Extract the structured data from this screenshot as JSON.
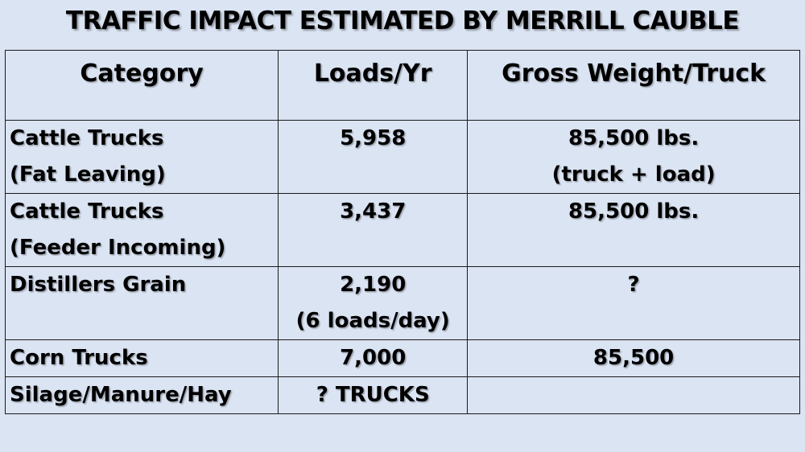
{
  "title": "TRAFFIC IMPACT ESTIMATED BY MERRILL CAUBLE",
  "table": {
    "headers": {
      "category": "Category",
      "loads": "Loads/Yr",
      "weight": "Gross Weight/Truck"
    },
    "rows": [
      {
        "category_line1": "Cattle Trucks",
        "category_line2": "(Fat Leaving)",
        "loads_line1": "5,958",
        "loads_line2": "",
        "weight_line1": "85,500 lbs.",
        "weight_line2": "(truck + load)"
      },
      {
        "category_line1": "Cattle Trucks",
        "category_line2": "(Feeder Incoming)",
        "loads_line1": "3,437",
        "loads_line2": "",
        "weight_line1": "85,500 lbs.",
        "weight_line2": ""
      },
      {
        "category_line1": "Distillers Grain",
        "category_line2": "",
        "loads_line1": "2,190",
        "loads_line2": "(6 loads/day)",
        "weight_line1": "?",
        "weight_line2": ""
      },
      {
        "category_line1": "Corn Trucks",
        "category_line2": "",
        "loads_line1": "7,000",
        "loads_line2": "",
        "weight_line1": "85,500",
        "weight_line2": ""
      },
      {
        "category_line1": "Silage/Manure/Hay",
        "category_line2": "",
        "loads_line1": "? TRUCKS",
        "loads_line2": "",
        "weight_line1": "",
        "weight_line2": ""
      }
    ]
  }
}
